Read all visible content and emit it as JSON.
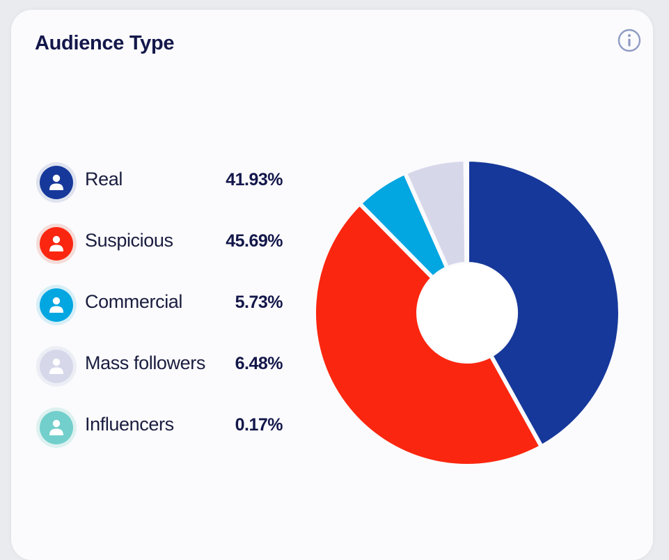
{
  "card": {
    "title": "Audience Type",
    "info_icon": "info-icon"
  },
  "legend": {
    "items": [
      {
        "label": "Real",
        "value_text": "41.93%",
        "color": "#16389a",
        "ring": "#dfe3ef",
        "icon": "person-icon"
      },
      {
        "label": "Suspicious",
        "value_text": "45.69%",
        "color": "#fb260f",
        "ring": "#f5dcd9",
        "icon": "person-icon"
      },
      {
        "label": "Commercial",
        "value_text": "5.73%",
        "color": "#02a6e1",
        "ring": "#d6eef7",
        "icon": "person-icon"
      },
      {
        "label": "Mass followers",
        "value_text": "6.48%",
        "color": "#d6d8ea",
        "ring": "#eceef5",
        "icon": "person-icon"
      },
      {
        "label": "Influencers",
        "value_text": "0.17%",
        "color": "#72cfcb",
        "ring": "#ddf1f0",
        "icon": "person-icon"
      }
    ]
  },
  "chart_data": {
    "type": "pie",
    "title": "Audience Type",
    "donut": true,
    "start": "top",
    "direction": "clockwise",
    "categories": [
      "Real",
      "Suspicious",
      "Commercial",
      "Mass followers",
      "Influencers"
    ],
    "values": [
      41.93,
      45.69,
      5.73,
      6.48,
      0.17
    ],
    "colors": [
      "#16389a",
      "#fb260f",
      "#02a6e1",
      "#d6d8ea",
      "#72cfcb"
    ],
    "legend": "left"
  }
}
